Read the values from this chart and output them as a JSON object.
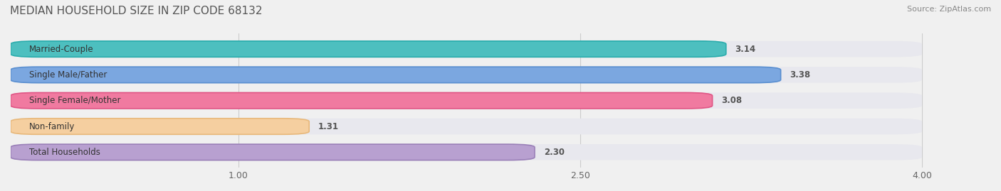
{
  "title": "MEDIAN HOUSEHOLD SIZE IN ZIP CODE 68132",
  "source": "Source: ZipAtlas.com",
  "categories": [
    "Married-Couple",
    "Single Male/Father",
    "Single Female/Mother",
    "Non-family",
    "Total Households"
  ],
  "values": [
    3.14,
    3.38,
    3.08,
    1.31,
    2.3
  ],
  "bar_colors": [
    "#4DBFBF",
    "#7BA7E0",
    "#F07AA0",
    "#F5CFA0",
    "#B8A0D0"
  ],
  "bar_edge_colors": [
    "#2AACAC",
    "#5A8FD0",
    "#E05585",
    "#E8B87A",
    "#9A80B8"
  ],
  "xlim": [
    0,
    4.0
  ],
  "xticks": [
    1.0,
    2.5,
    4.0
  ],
  "value_label_color": "#ffffff",
  "background_color": "#f0f0f0",
  "bar_bg_color": "#e8e8ee",
  "title_fontsize": 11,
  "source_fontsize": 8,
  "label_fontsize": 8.5,
  "value_fontsize": 8.5,
  "tick_fontsize": 9
}
